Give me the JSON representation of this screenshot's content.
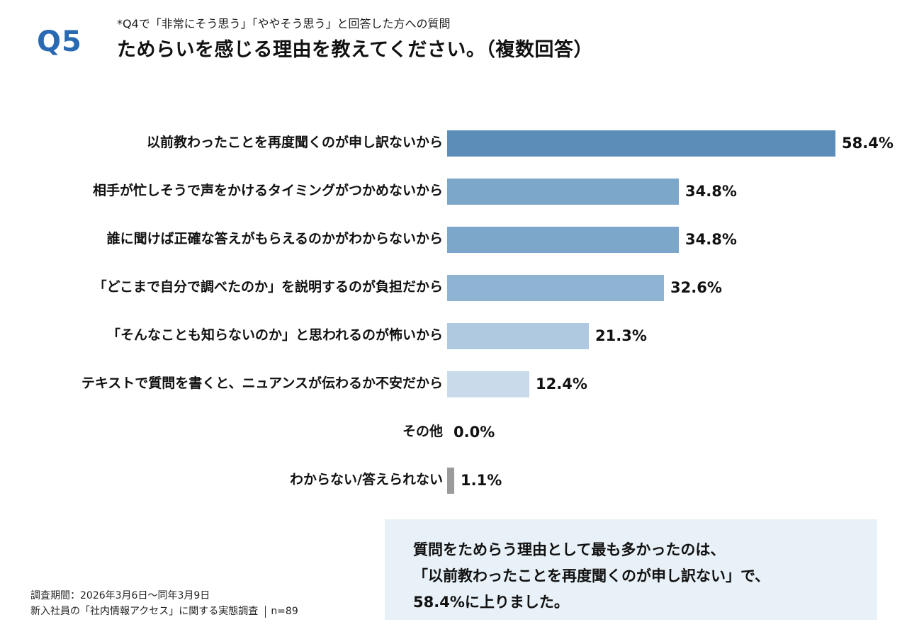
{
  "header": {
    "q_label": "Q5",
    "note": "*Q4で「非常にそう思う」「ややそう思う」と回答した方への質問",
    "title": "ためらいを感じる理由を教えてください。（複数回答）"
  },
  "chart_data": {
    "type": "bar",
    "orientation": "horizontal",
    "title": "ためらいを感じる理由を教えてください。（複数回答）",
    "categories": [
      "以前教わったことを再度聞くのが申し訳ないから",
      "相手が忙しそうで声をかけるタイミングがつかめないから",
      "誰に聞けば正確な答えがもらえるのかがわからないから",
      "「どこまで自分で調べたのか」を説明するのが負担だから",
      "「そんなことも知らないのか」と思われるのが怖いから",
      "テキストで質問を書くと、ニュアンスが伝わるか不安だから",
      "その他",
      "わからない/答えられない"
    ],
    "values": [
      58.4,
      34.8,
      34.8,
      32.6,
      21.3,
      12.4,
      0.0,
      1.1
    ],
    "value_labels": [
      "58.4%",
      "34.8%",
      "34.8%",
      "32.6%",
      "21.3%",
      "12.4%",
      "0.0%",
      "1.1%"
    ],
    "bar_colors": [
      "#5c8db9",
      "#7da6cb",
      "#7da6cb",
      "#8fb3d3",
      "#afc9e0",
      "#c9dbea",
      "#c9dbea",
      "#9b9b9b"
    ],
    "xlim": [
      0,
      60
    ],
    "unit": "%"
  },
  "callout": {
    "lines": [
      "質問をためらう理由として最も多かったのは、",
      "「以前教わったことを再度聞くのが申し訳ない」で、",
      "58.4%に上りました。"
    ]
  },
  "footer": {
    "line1": "調査期間：2026年3月6日～同年3月9日",
    "line2": "新入社員の「社内情報アクセス」に関する実態調査",
    "sample": "n=89"
  }
}
